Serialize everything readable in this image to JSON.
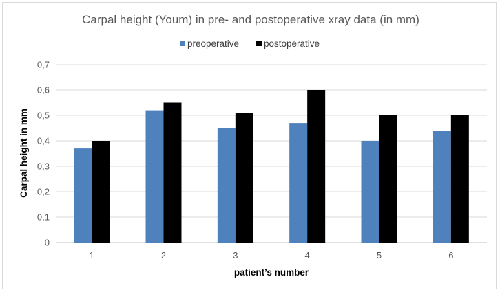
{
  "chart_data": {
    "type": "bar",
    "title": "Carpal height (Youm) in pre- and postoperative xray data (in mm)",
    "xlabel": "patient’s number",
    "ylabel": "Carpal height in mm",
    "categories": [
      "1",
      "2",
      "3",
      "4",
      "5",
      "6"
    ],
    "series": [
      {
        "name": "preoperative",
        "color": "#4f81bd",
        "values": [
          0.37,
          0.52,
          0.45,
          0.47,
          0.4,
          0.44
        ]
      },
      {
        "name": "postoperative",
        "color": "#000000",
        "values": [
          0.4,
          0.55,
          0.51,
          0.6,
          0.5,
          0.5
        ]
      }
    ],
    "ylim": [
      0,
      0.7
    ],
    "yticks": [
      "0",
      "0,1",
      "0,2",
      "0,3",
      "0,4",
      "0,5",
      "0,6",
      "0,7"
    ],
    "grid": true,
    "legend_position": "top-center"
  }
}
